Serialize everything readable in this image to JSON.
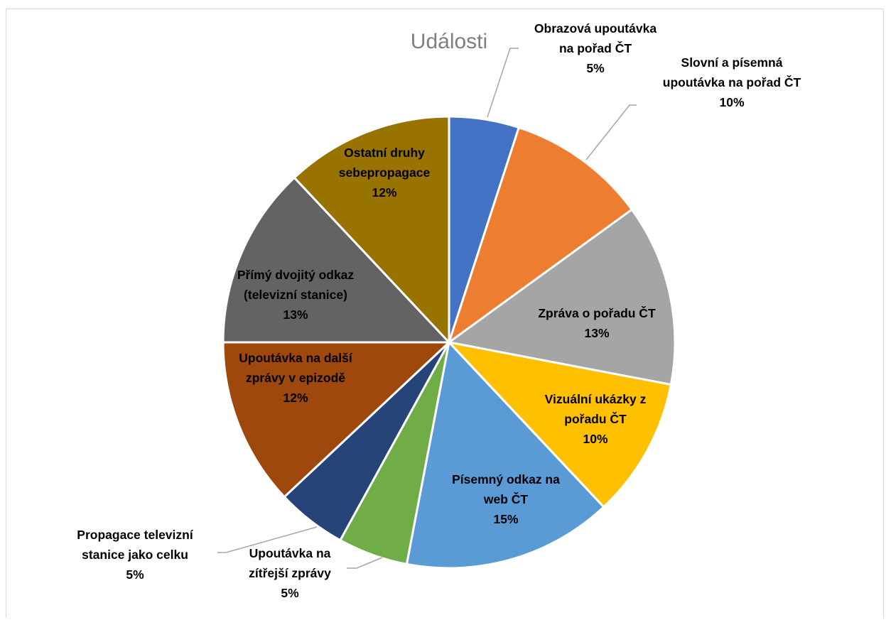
{
  "chart_data": {
    "type": "pie",
    "title": "Události",
    "slices": [
      {
        "label_lines": [
          "Obrazová upoutávka",
          "na pořad ČT"
        ],
        "pct": "5%",
        "value": 5,
        "color": "#4472c4"
      },
      {
        "label_lines": [
          "Slovní a písemná",
          "upoutávka na pořad ČT"
        ],
        "pct": "10%",
        "value": 10,
        "color": "#ed7d31"
      },
      {
        "label_lines": [
          "Zpráva o pořadu ČT"
        ],
        "pct": "13%",
        "value": 13,
        "color": "#a5a5a5"
      },
      {
        "label_lines": [
          "Vizuální ukázky z",
          "pořadu ČT"
        ],
        "pct": "10%",
        "value": 10,
        "color": "#ffc000"
      },
      {
        "label_lines": [
          "Písemný odkaz na",
          "web ČT"
        ],
        "pct": "15%",
        "value": 15,
        "color": "#5b9bd5"
      },
      {
        "label_lines": [
          "Upoutávka na",
          "zítřejší zprávy"
        ],
        "pct": "5%",
        "value": 5,
        "color": "#70ad47"
      },
      {
        "label_lines": [
          "Propagace televizní",
          "stanice jako celku"
        ],
        "pct": "5%",
        "value": 5,
        "color": "#264478"
      },
      {
        "label_lines": [
          "Upoutávka na další",
          "zprávy v epizodě"
        ],
        "pct": "12%",
        "value": 12,
        "color": "#9e480e"
      },
      {
        "label_lines": [
          "Přímý dvojitý odkaz",
          "(televizní stanice)"
        ],
        "pct": "13%",
        "value": 13,
        "color": "#636363"
      },
      {
        "label_lines": [
          "Ostatní druhy",
          "sebepropagace"
        ],
        "pct": "12%",
        "value": 12,
        "color": "#997300"
      }
    ],
    "legend": "none"
  }
}
